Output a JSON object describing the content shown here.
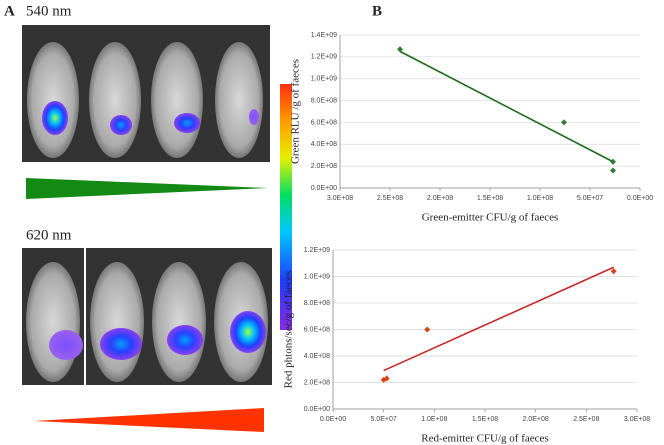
{
  "panel_labels": {
    "a": "A",
    "b": "B",
    "top_row": "540 nm",
    "bottom_row": "620 nm"
  },
  "chart_data": [
    {
      "type": "scatter",
      "x_label": "Green-emitter CFU/g of faeces",
      "y_label": "Green RLU /g of faeces",
      "xlim": [
        300000000,
        0
      ],
      "xticks": [
        {
          "value": 300000000,
          "label": "3.0E+08"
        },
        {
          "value": 250000000,
          "label": "2.5E+08"
        },
        {
          "value": 200000000,
          "label": "2.0E+08"
        },
        {
          "value": 150000000,
          "label": "1.5E+08"
        },
        {
          "value": 100000000,
          "label": "1.0E+08"
        },
        {
          "value": 50000000,
          "label": "5.0E+07"
        },
        {
          "value": 0,
          "label": "0.0E+00"
        }
      ],
      "ylim": [
        0,
        1400000000
      ],
      "yticks": [
        {
          "value": 0,
          "label": "0.0E+00"
        },
        {
          "value": 200000000,
          "label": "2.0E+08"
        },
        {
          "value": 400000000,
          "label": "4.0E+08"
        },
        {
          "value": 600000000,
          "label": "6.0E+08"
        },
        {
          "value": 800000000,
          "label": "8.0E+08"
        },
        {
          "value": 1000000000,
          "label": "1.0E+09"
        },
        {
          "value": 1200000000,
          "label": "1.2E+09"
        },
        {
          "value": 1400000000,
          "label": "1.4E+09"
        }
      ],
      "grid": true,
      "series": [
        {
          "color": "#2e7d32",
          "x": [
            240000000,
            76000000,
            27000000,
            27000000
          ],
          "values": [
            1270000000,
            600000000,
            240000000,
            160000000
          ]
        }
      ],
      "trendline": {
        "color": "#1b6b1b",
        "x": [
          240000000,
          27000000
        ],
        "values": [
          1250000000,
          240000000
        ]
      }
    },
    {
      "type": "scatter",
      "x_label": "Red-emitter CFU/g of faeces",
      "y_label": "Red phtons/sec/g of faeces",
      "xlim": [
        0,
        300000000
      ],
      "xticks": [
        {
          "value": 0,
          "label": "0.0E+00"
        },
        {
          "value": 50000000,
          "label": "5.0E+07"
        },
        {
          "value": 100000000,
          "label": "1.0E+08"
        },
        {
          "value": 150000000,
          "label": "1.5E+08"
        },
        {
          "value": 200000000,
          "label": "2.0E+08"
        },
        {
          "value": 250000000,
          "label": "2.5E+08"
        },
        {
          "value": 300000000,
          "label": "3.0E+08"
        }
      ],
      "ylim": [
        0,
        1200000000
      ],
      "yticks": [
        {
          "value": 0,
          "label": "0.0E+00"
        },
        {
          "value": 200000000,
          "label": "2.0E+08"
        },
        {
          "value": 400000000,
          "label": "4.0E+08"
        },
        {
          "value": 600000000,
          "label": "6.0E+08"
        },
        {
          "value": 800000000,
          "label": "8.0E+08"
        },
        {
          "value": 1000000000,
          "label": "1.0E+09"
        },
        {
          "value": 1200000000,
          "label": "1.2E+09"
        }
      ],
      "grid": true,
      "series": [
        {
          "color": "#d84315",
          "x": [
            50000000,
            53000000,
            93000000,
            277000000
          ],
          "values": [
            220000000,
            230000000,
            600000000,
            1040000000
          ]
        }
      ],
      "trendline": {
        "color": "#c62828",
        "x": [
          50000000,
          277000000
        ],
        "values": [
          290000000,
          1070000000
        ]
      }
    }
  ]
}
